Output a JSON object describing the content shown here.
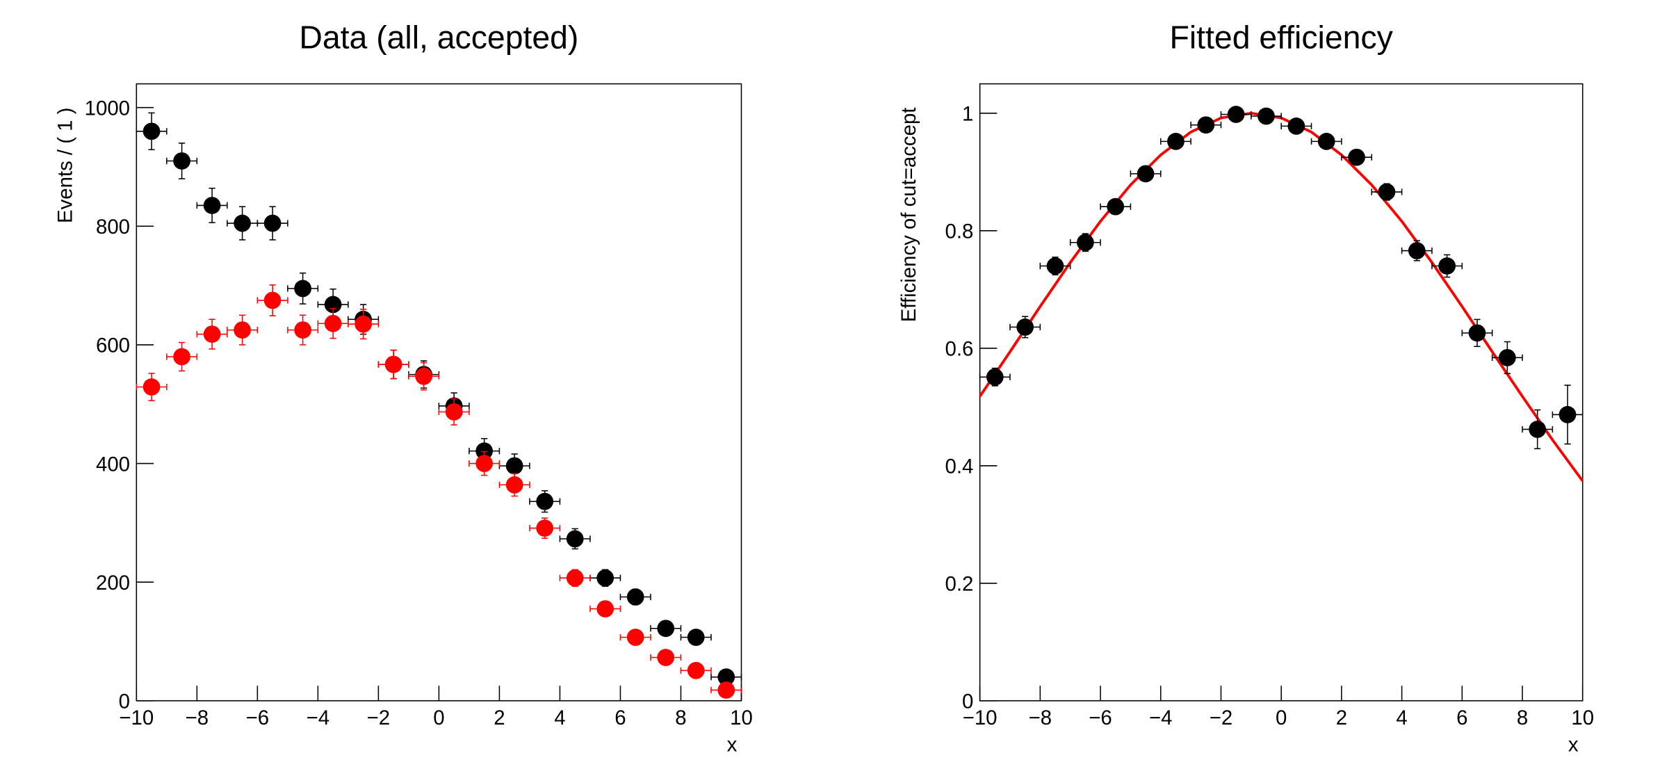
{
  "chart_data": [
    {
      "type": "scatter",
      "title": "Data (all, accepted)",
      "x_label": "x",
      "y_label": "Events / ( 1 )",
      "xlim": [
        -10,
        10
      ],
      "ylim": [
        0,
        1040
      ],
      "xticks": [
        {
          "value": -10,
          "label": "−10"
        },
        {
          "value": -8,
          "label": "−8"
        },
        {
          "value": -6,
          "label": "−6"
        },
        {
          "value": -4,
          "label": "−4"
        },
        {
          "value": -2,
          "label": "−2"
        },
        0,
        2,
        4,
        6,
        8,
        10
      ],
      "yticks": [
        0,
        200,
        400,
        600,
        800,
        1000
      ],
      "xerr": 0.5,
      "x": [
        -9.5,
        -8.5,
        -7.5,
        -6.5,
        -5.5,
        -4.5,
        -3.5,
        -2.5,
        -1.5,
        -0.5,
        0.5,
        1.5,
        2.5,
        3.5,
        4.5,
        5.5,
        6.5,
        7.5,
        8.5,
        9.5
      ],
      "series": [
        {
          "color": "#000000",
          "values": [
            960,
            910,
            835,
            805,
            805,
            695,
            668,
            643,
            567,
            550,
            497,
            421,
            396,
            336,
            273,
            207,
            175,
            122,
            107,
            40
          ],
          "errors": [
            31,
            30,
            29,
            28,
            28,
            26,
            26,
            25,
            24,
            23,
            22,
            21,
            20,
            18,
            17,
            14,
            13,
            11,
            10,
            6
          ]
        },
        {
          "color": "#ff0000",
          "values": [
            529,
            580,
            618,
            625,
            675,
            625,
            636,
            635,
            567,
            547,
            487,
            400,
            364,
            291,
            207,
            155,
            107,
            73,
            51,
            18
          ],
          "errors": [
            23,
            24,
            25,
            25,
            26,
            25,
            25,
            25,
            24,
            23,
            22,
            20,
            19,
            17,
            14,
            12,
            10,
            8,
            7,
            4
          ]
        }
      ]
    },
    {
      "type": "scatter",
      "title": "Fitted efficiency",
      "x_label": "x",
      "y_label": "Efficiency of cut=accept",
      "xlim": [
        -10,
        10
      ],
      "ylim": [
        0,
        1.05
      ],
      "xticks": [
        {
          "value": -10,
          "label": "−10"
        },
        {
          "value": -8,
          "label": "−8"
        },
        {
          "value": -6,
          "label": "−6"
        },
        {
          "value": -4,
          "label": "−4"
        },
        {
          "value": -2,
          "label": "−2"
        },
        0,
        2,
        4,
        6,
        8,
        10
      ],
      "yticks": [
        0,
        0.2,
        0.4,
        0.6,
        0.8,
        1
      ],
      "xerr": 0.5,
      "x": [
        -9.5,
        -8.5,
        -7.5,
        -6.5,
        -5.5,
        -4.5,
        -3.5,
        -2.5,
        -1.5,
        -0.5,
        0.5,
        1.5,
        2.5,
        3.5,
        4.5,
        5.5,
        6.5,
        7.5,
        8.5,
        9.5
      ],
      "series": [
        {
          "color": "#000000",
          "values": [
            0.551,
            0.636,
            0.74,
            0.78,
            0.841,
            0.897,
            0.952,
            0.98,
            0.998,
            0.995,
            0.978,
            0.952,
            0.925,
            0.866,
            0.766,
            0.74,
            0.626,
            0.584,
            0.462,
            0.487
          ],
          "errors": [
            0.015,
            0.018,
            0.015,
            0.015,
            0.012,
            0.01,
            0.008,
            0.006,
            0.004,
            0.004,
            0.006,
            0.009,
            0.012,
            0.014,
            0.017,
            0.019,
            0.023,
            0.027,
            0.033,
            0.05
          ]
        }
      ],
      "fit": {
        "color": "#ff0000",
        "x": [
          -10,
          -9,
          -8,
          -7,
          -6,
          -5,
          -4,
          -3,
          -2,
          -1,
          0,
          1,
          2,
          3,
          4,
          5,
          6,
          7,
          8,
          9,
          10
        ],
        "values": [
          0.518,
          0.594,
          0.671,
          0.746,
          0.816,
          0.878,
          0.929,
          0.968,
          0.992,
          1,
          0.992,
          0.968,
          0.929,
          0.878,
          0.816,
          0.746,
          0.671,
          0.594,
          0.518,
          0.444,
          0.374
        ]
      }
    }
  ]
}
